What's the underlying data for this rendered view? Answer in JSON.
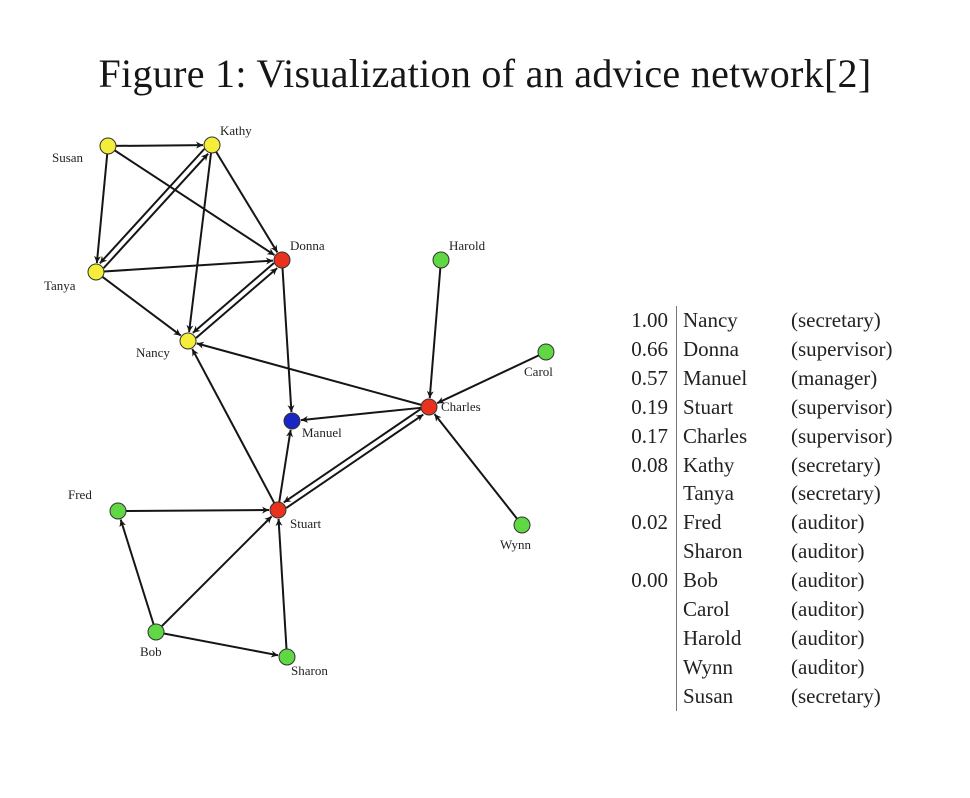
{
  "caption": "Figure 1: Visualization of an advice network[2]",
  "graph": {
    "colors": {
      "red": "#e8321e",
      "yellow": "#f4ee3a",
      "green": "#5fd844",
      "blue": "#1a26c4",
      "edge": "#151515"
    },
    "nodes": [
      {
        "id": "Susan",
        "label": "Susan",
        "color": "yellow"
      },
      {
        "id": "Kathy",
        "label": "Kathy",
        "color": "yellow"
      },
      {
        "id": "Tanya",
        "label": "Tanya",
        "color": "yellow"
      },
      {
        "id": "Donna",
        "label": "Donna",
        "color": "red"
      },
      {
        "id": "Nancy",
        "label": "Nancy",
        "color": "yellow"
      },
      {
        "id": "Harold",
        "label": "Harold",
        "color": "green"
      },
      {
        "id": "Carol",
        "label": "Carol",
        "color": "green"
      },
      {
        "id": "Charles",
        "label": "Charles",
        "color": "red"
      },
      {
        "id": "Manuel",
        "label": "Manuel",
        "color": "blue"
      },
      {
        "id": "Fred",
        "label": "Fred",
        "color": "green"
      },
      {
        "id": "Stuart",
        "label": "Stuart",
        "color": "red"
      },
      {
        "id": "Wynn",
        "label": "Wynn",
        "color": "green"
      },
      {
        "id": "Bob",
        "label": "Bob",
        "color": "green"
      },
      {
        "id": "Sharon",
        "label": "Sharon",
        "color": "green"
      }
    ],
    "edges": [
      [
        "Susan",
        "Kathy"
      ],
      [
        "Susan",
        "Tanya"
      ],
      [
        "Susan",
        "Donna"
      ],
      [
        "Kathy",
        "Tanya"
      ],
      [
        "Tanya",
        "Kathy"
      ],
      [
        "Kathy",
        "Donna"
      ],
      [
        "Kathy",
        "Nancy"
      ],
      [
        "Tanya",
        "Donna"
      ],
      [
        "Tanya",
        "Nancy"
      ],
      [
        "Donna",
        "Nancy"
      ],
      [
        "Nancy",
        "Donna"
      ],
      [
        "Donna",
        "Manuel"
      ],
      [
        "Harold",
        "Charles"
      ],
      [
        "Carol",
        "Charles"
      ],
      [
        "Wynn",
        "Charles"
      ],
      [
        "Charles",
        "Nancy"
      ],
      [
        "Charles",
        "Manuel"
      ],
      [
        "Charles",
        "Stuart"
      ],
      [
        "Stuart",
        "Charles"
      ],
      [
        "Stuart",
        "Nancy"
      ],
      [
        "Stuart",
        "Manuel"
      ],
      [
        "Fred",
        "Stuart"
      ],
      [
        "Bob",
        "Fred"
      ],
      [
        "Bob",
        "Stuart"
      ],
      [
        "Bob",
        "Sharon"
      ],
      [
        "Sharon",
        "Stuart"
      ]
    ]
  },
  "ranking": [
    {
      "score": "1.00",
      "name": "Nancy",
      "role": "(secretary)"
    },
    {
      "score": "0.66",
      "name": "Donna",
      "role": "(supervisor)"
    },
    {
      "score": "0.57",
      "name": "Manuel",
      "role": "(manager)"
    },
    {
      "score": "0.19",
      "name": "Stuart",
      "role": "(supervisor)"
    },
    {
      "score": "0.17",
      "name": "Charles",
      "role": "(supervisor)"
    },
    {
      "score": "0.08",
      "name": "Kathy",
      "role": "(secretary)"
    },
    {
      "score": "",
      "name": "Tanya",
      "role": "(secretary)"
    },
    {
      "score": "0.02",
      "name": "Fred",
      "role": "(auditor)"
    },
    {
      "score": "",
      "name": "Sharon",
      "role": "(auditor)"
    },
    {
      "score": "0.00",
      "name": "Bob",
      "role": "(auditor)"
    },
    {
      "score": "",
      "name": "Carol",
      "role": "(auditor)"
    },
    {
      "score": "",
      "name": "Harold",
      "role": "(auditor)"
    },
    {
      "score": "",
      "name": "Wynn",
      "role": "(auditor)"
    },
    {
      "score": "",
      "name": "Susan",
      "role": "(secretary)"
    }
  ]
}
